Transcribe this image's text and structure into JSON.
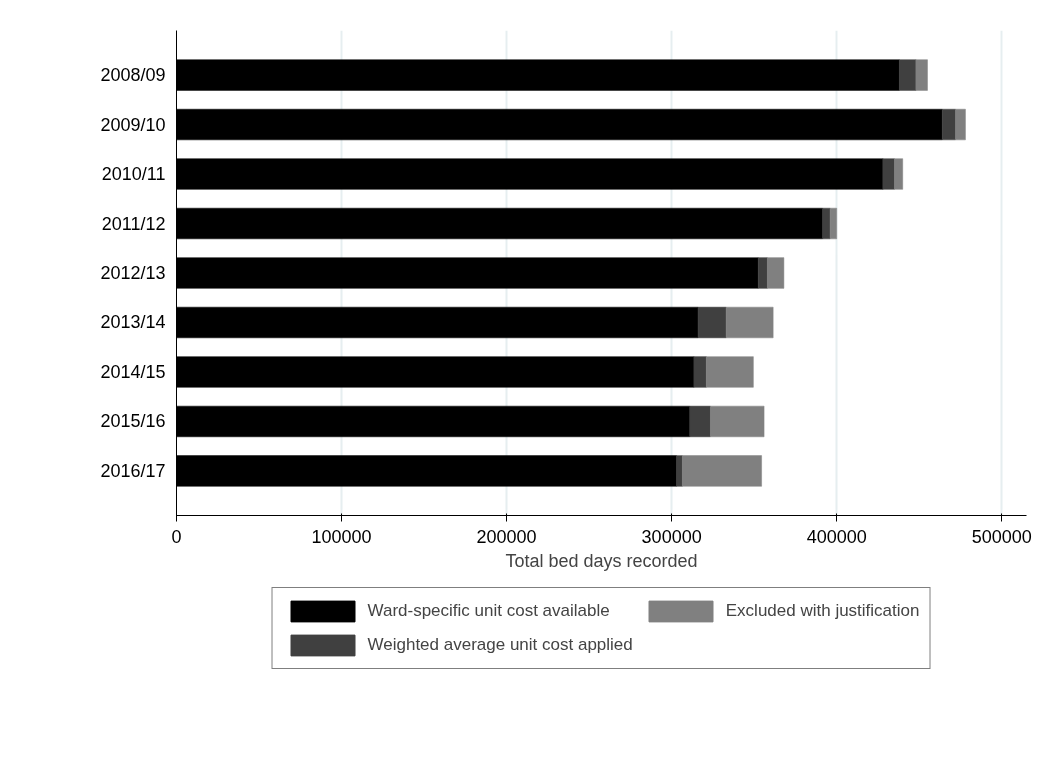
{
  "chart_data": {
    "type": "bar",
    "orientation": "horizontal",
    "stacked": true,
    "categories": [
      "2008/09",
      "2009/10",
      "2010/11",
      "2011/12",
      "2012/13",
      "2013/14",
      "2014/15",
      "2015/16",
      "2016/17"
    ],
    "series": [
      {
        "name": "Ward-specific unit cost available",
        "color": "#000000",
        "values": [
          438000,
          464000,
          428000,
          391500,
          352500,
          316000,
          313500,
          311000,
          303000
        ]
      },
      {
        "name": "Weighted average unit cost applied",
        "color": "#404040",
        "values": [
          10000,
          8000,
          7000,
          4500,
          5500,
          17000,
          7500,
          12500,
          3500
        ]
      },
      {
        "name": "Excluded with justification",
        "color": "#808080",
        "values": [
          7000,
          6000,
          5000,
          4000,
          10000,
          28500,
          28500,
          32500,
          48000
        ]
      }
    ],
    "xlabel": "Total bed days recorded",
    "xlim": [
      0,
      515000
    ],
    "xticks": [
      0,
      100000,
      200000,
      300000,
      400000,
      500000
    ],
    "grid": "x",
    "legend": "bottom"
  }
}
